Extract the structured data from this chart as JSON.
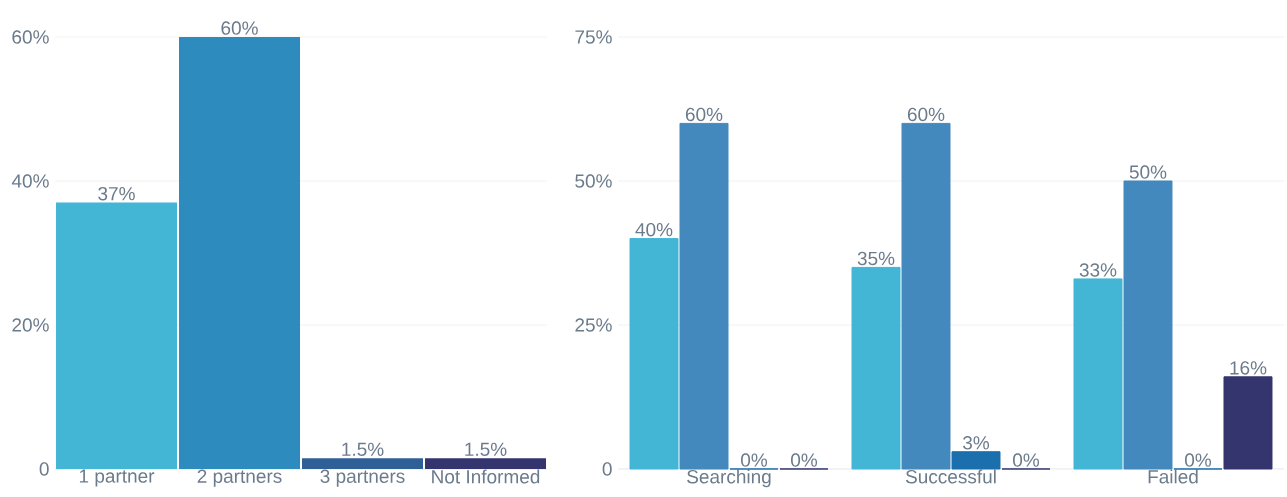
{
  "chart_data": [
    {
      "type": "bar",
      "categories": [
        "1 partner",
        "2 partners",
        "3 partners",
        "Not Informed"
      ],
      "values": [
        37,
        60,
        1.5,
        1.5
      ],
      "colors": [
        "#43b6d6",
        "#2d8bbd",
        "#2f5f97",
        "#34346e"
      ],
      "value_labels": [
        "37%",
        "60%",
        "1.5%",
        "1.5%"
      ],
      "ylim": [
        0,
        60
      ],
      "yticks": [
        0,
        {
          "value": 20,
          "label": "20%"
        },
        {
          "value": 40,
          "label": "40%"
        },
        {
          "value": 60,
          "label": "60%"
        }
      ],
      "grid": "y"
    },
    {
      "type": "bar",
      "categories": [
        "Searching",
        "Successful",
        "Failed"
      ],
      "series": [
        {
          "color": "#43b6d6",
          "values": [
            40,
            35,
            33
          ],
          "value_labels": [
            "40%",
            "35%",
            "33%"
          ]
        },
        {
          "color": "#4389bd",
          "values": [
            60,
            60,
            50
          ],
          "value_labels": [
            "60%",
            "60%",
            "50%"
          ]
        },
        {
          "color": "#1b6fad",
          "values": [
            0,
            3,
            0
          ],
          "value_labels": [
            "0%",
            "3%",
            "0%"
          ]
        },
        {
          "color": "#34346e",
          "values": [
            0,
            0,
            16
          ],
          "value_labels": [
            "0%",
            "0%",
            "16%"
          ]
        }
      ],
      "ylim": [
        0,
        75
      ],
      "yticks": [
        0,
        {
          "value": 25,
          "label": "25%"
        },
        {
          "value": 50,
          "label": "50%"
        },
        {
          "value": 75,
          "label": "75%"
        }
      ],
      "grid": "y"
    }
  ]
}
